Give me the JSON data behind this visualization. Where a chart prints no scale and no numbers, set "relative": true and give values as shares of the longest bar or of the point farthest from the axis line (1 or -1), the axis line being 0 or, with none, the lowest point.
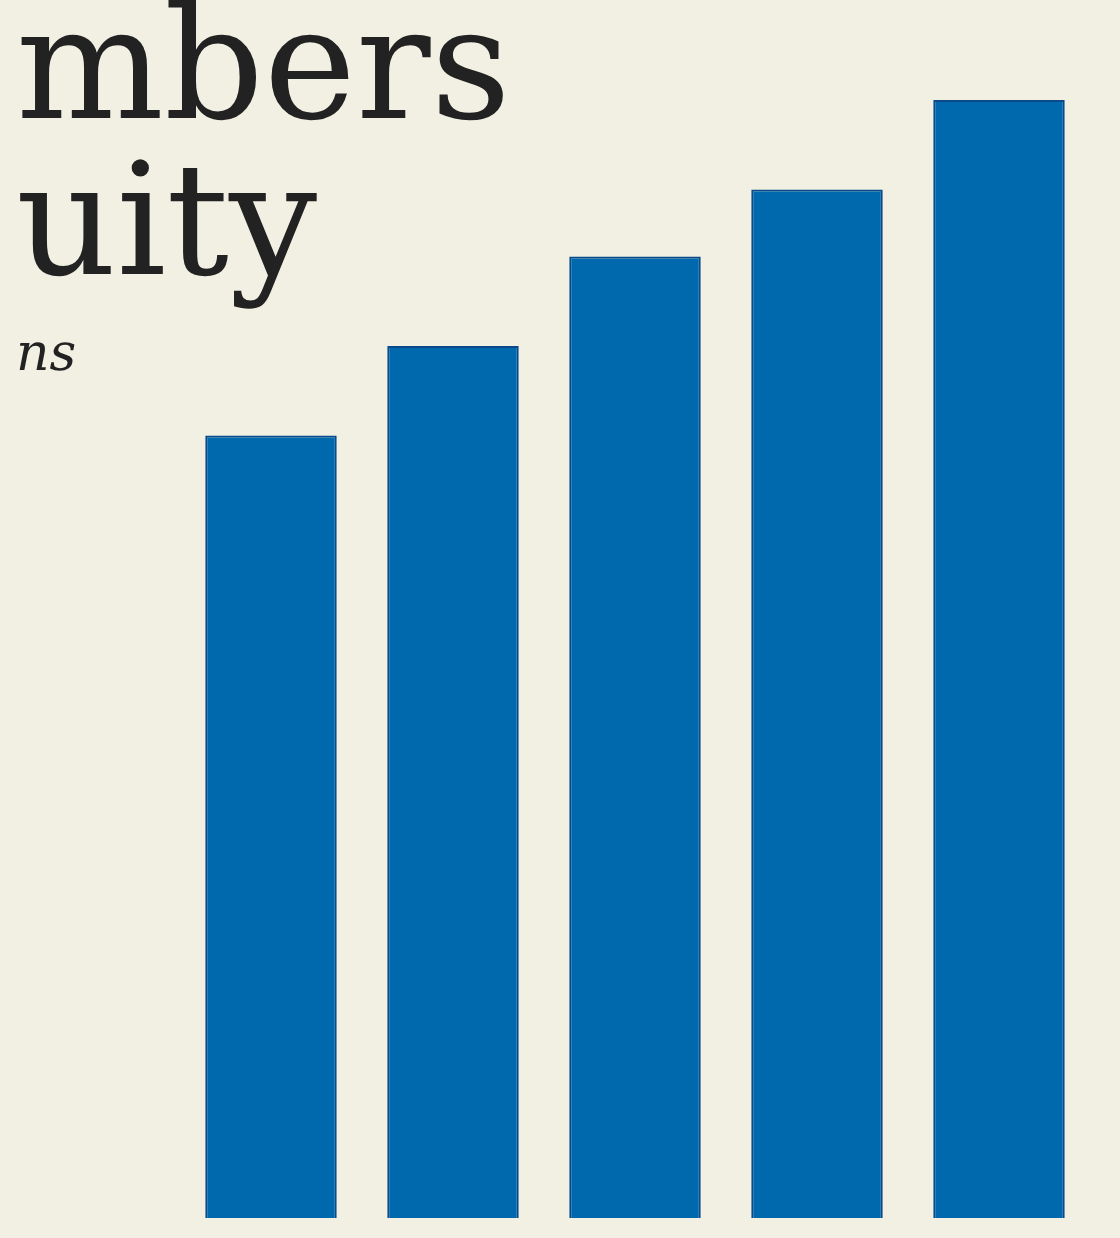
{
  "chart_data": {
    "type": "bar",
    "title": "mbers\nuity",
    "subtitle": "ns",
    "relative": true,
    "categories": [
      null,
      null,
      null,
      null,
      null
    ],
    "values": [
      0.7,
      0.78,
      0.86,
      0.92,
      1
    ],
    "color": "#0068ac"
  }
}
